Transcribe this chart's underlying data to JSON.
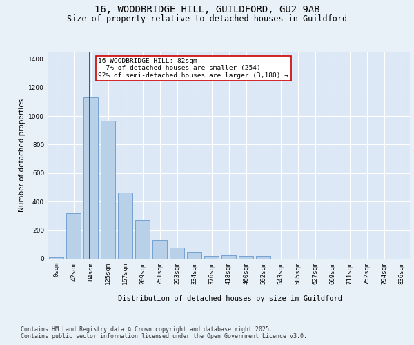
{
  "title_line1": "16, WOODBRIDGE HILL, GUILDFORD, GU2 9AB",
  "title_line2": "Size of property relative to detached houses in Guildford",
  "xlabel": "Distribution of detached houses by size in Guildford",
  "ylabel": "Number of detached properties",
  "categories": [
    "0sqm",
    "42sqm",
    "84sqm",
    "125sqm",
    "167sqm",
    "209sqm",
    "251sqm",
    "293sqm",
    "334sqm",
    "376sqm",
    "418sqm",
    "460sqm",
    "502sqm",
    "543sqm",
    "585sqm",
    "627sqm",
    "669sqm",
    "711sqm",
    "752sqm",
    "794sqm",
    "836sqm"
  ],
  "values": [
    8,
    320,
    1130,
    965,
    465,
    270,
    130,
    75,
    48,
    20,
    22,
    20,
    18,
    0,
    0,
    0,
    0,
    0,
    0,
    0,
    0
  ],
  "bar_color": "#b8d0e8",
  "bar_edge_color": "#6699cc",
  "vline_x": 1.92,
  "vline_color": "#cc0000",
  "annotation_text": "16 WOODBRIDGE HILL: 82sqm\n← 7% of detached houses are smaller (254)\n92% of semi-detached houses are larger (3,180) →",
  "annotation_box_color": "#ffffff",
  "annotation_box_edge": "#cc0000",
  "ylim": [
    0,
    1450
  ],
  "background_color": "#e8f0f8",
  "plot_bg_color": "#dce8f5",
  "footer_text": "Contains HM Land Registry data © Crown copyright and database right 2025.\nContains public sector information licensed under the Open Government Licence v3.0.",
  "grid_color": "#ffffff",
  "title_fontsize": 10,
  "subtitle_fontsize": 8.5,
  "axis_label_fontsize": 7.5,
  "tick_fontsize": 6.5,
  "annotation_fontsize": 6.8,
  "footer_fontsize": 6
}
